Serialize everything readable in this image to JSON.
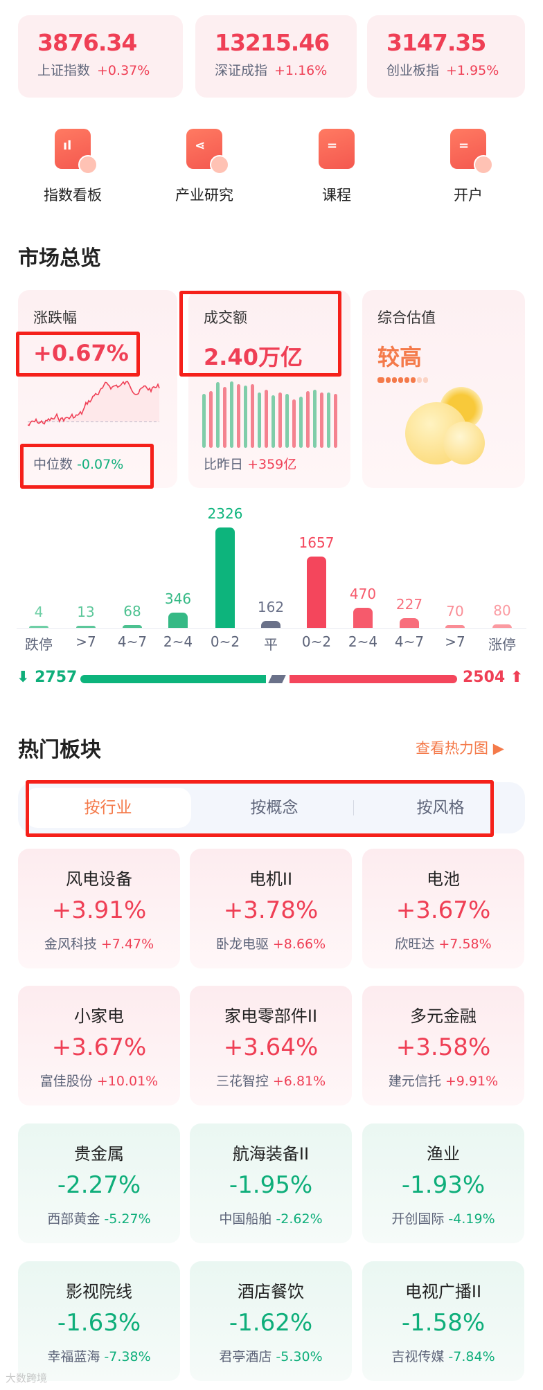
{
  "indices": [
    {
      "value": "3876.34",
      "name": "上证指数",
      "change": "+0.37%"
    },
    {
      "value": "13215.46",
      "name": "深证成指",
      "change": "+1.16%"
    },
    {
      "value": "3147.35",
      "name": "创业板指",
      "change": "+1.95%"
    }
  ],
  "quick_links": [
    {
      "label": "指数看板",
      "icon": "chart-board-icon"
    },
    {
      "label": "产业研究",
      "icon": "share-research-icon"
    },
    {
      "label": "课程",
      "icon": "book-icon"
    },
    {
      "label": "开户",
      "icon": "account-card-icon"
    }
  ],
  "market": {
    "title": "市场总览",
    "change": {
      "label": "涨跌幅",
      "value": "+0.67%",
      "median_label": "中位数",
      "median_value": "-0.07%"
    },
    "turnover": {
      "label": "成交额",
      "value": "2.40万亿",
      "compare_label": "比昨日",
      "compare_value": "+359亿"
    },
    "valuation": {
      "label": "综合估值",
      "value": "较高",
      "level": 0.75,
      "icon": "sun-cloud-icon"
    }
  },
  "chart_data": {
    "type": "bar",
    "categories": [
      "跌停",
      ">7",
      "4~7",
      "2~4",
      "0~2",
      "平",
      "0~2",
      "2~4",
      "4~7",
      ">7",
      "涨停"
    ],
    "values": [
      4,
      13,
      68,
      346,
      2326,
      162,
      1657,
      470,
      227,
      70,
      80
    ],
    "value_labels": [
      "4",
      "13",
      "68",
      "346",
      "2326",
      "162",
      "1657",
      "470",
      "227",
      "70",
      "80"
    ],
    "colors": [
      "#6fcfa6",
      "#5cc79a",
      "#4cc190",
      "#35b985",
      "#0db47c",
      "#6a7189",
      "#f4465c",
      "#f65a6c",
      "#f86e7c",
      "#fa8c95",
      "#fb9aa1"
    ]
  },
  "breadth": {
    "down": "2757",
    "up": "2504",
    "down_color": "#0db47c",
    "up_color": "#f4465c"
  },
  "hot": {
    "title": "热门板块",
    "heatmap_link": "查看热力图",
    "tabs": [
      "按行业",
      "按概念",
      "按风格"
    ],
    "sectors": [
      {
        "name": "风电设备",
        "change": "+3.91%",
        "stock": "金风科技",
        "stock_change": "+7.47%",
        "dir": "up"
      },
      {
        "name": "电机II",
        "change": "+3.78%",
        "stock": "卧龙电驱",
        "stock_change": "+8.66%",
        "dir": "up"
      },
      {
        "name": "电池",
        "change": "+3.67%",
        "stock": "欣旺达",
        "stock_change": "+7.58%",
        "dir": "up"
      },
      {
        "name": "小家电",
        "change": "+3.67%",
        "stock": "富佳股份",
        "stock_change": "+10.01%",
        "dir": "up"
      },
      {
        "name": "家电零部件II",
        "change": "+3.64%",
        "stock": "三花智控",
        "stock_change": "+6.81%",
        "dir": "up"
      },
      {
        "name": "多元金融",
        "change": "+3.58%",
        "stock": "建元信托",
        "stock_change": "+9.91%",
        "dir": "up"
      },
      {
        "name": "贵金属",
        "change": "-2.27%",
        "stock": "西部黄金",
        "stock_change": "-5.27%",
        "dir": "dn"
      },
      {
        "name": "航海装备II",
        "change": "-1.95%",
        "stock": "中国船舶",
        "stock_change": "-2.62%",
        "dir": "dn"
      },
      {
        "name": "渔业",
        "change": "-1.93%",
        "stock": "开创国际",
        "stock_change": "-4.19%",
        "dir": "dn"
      },
      {
        "name": "影视院线",
        "change": "-1.63%",
        "stock": "幸福蓝海",
        "stock_change": "-7.38%",
        "dir": "dn"
      },
      {
        "name": "酒店餐饮",
        "change": "-1.62%",
        "stock": "君亭酒店",
        "stock_change": "-5.30%",
        "dir": "dn"
      },
      {
        "name": "电视广播II",
        "change": "-1.58%",
        "stock": "吉视传媒",
        "stock_change": "-7.84%",
        "dir": "dn"
      }
    ]
  },
  "watermark": "大数跨境"
}
